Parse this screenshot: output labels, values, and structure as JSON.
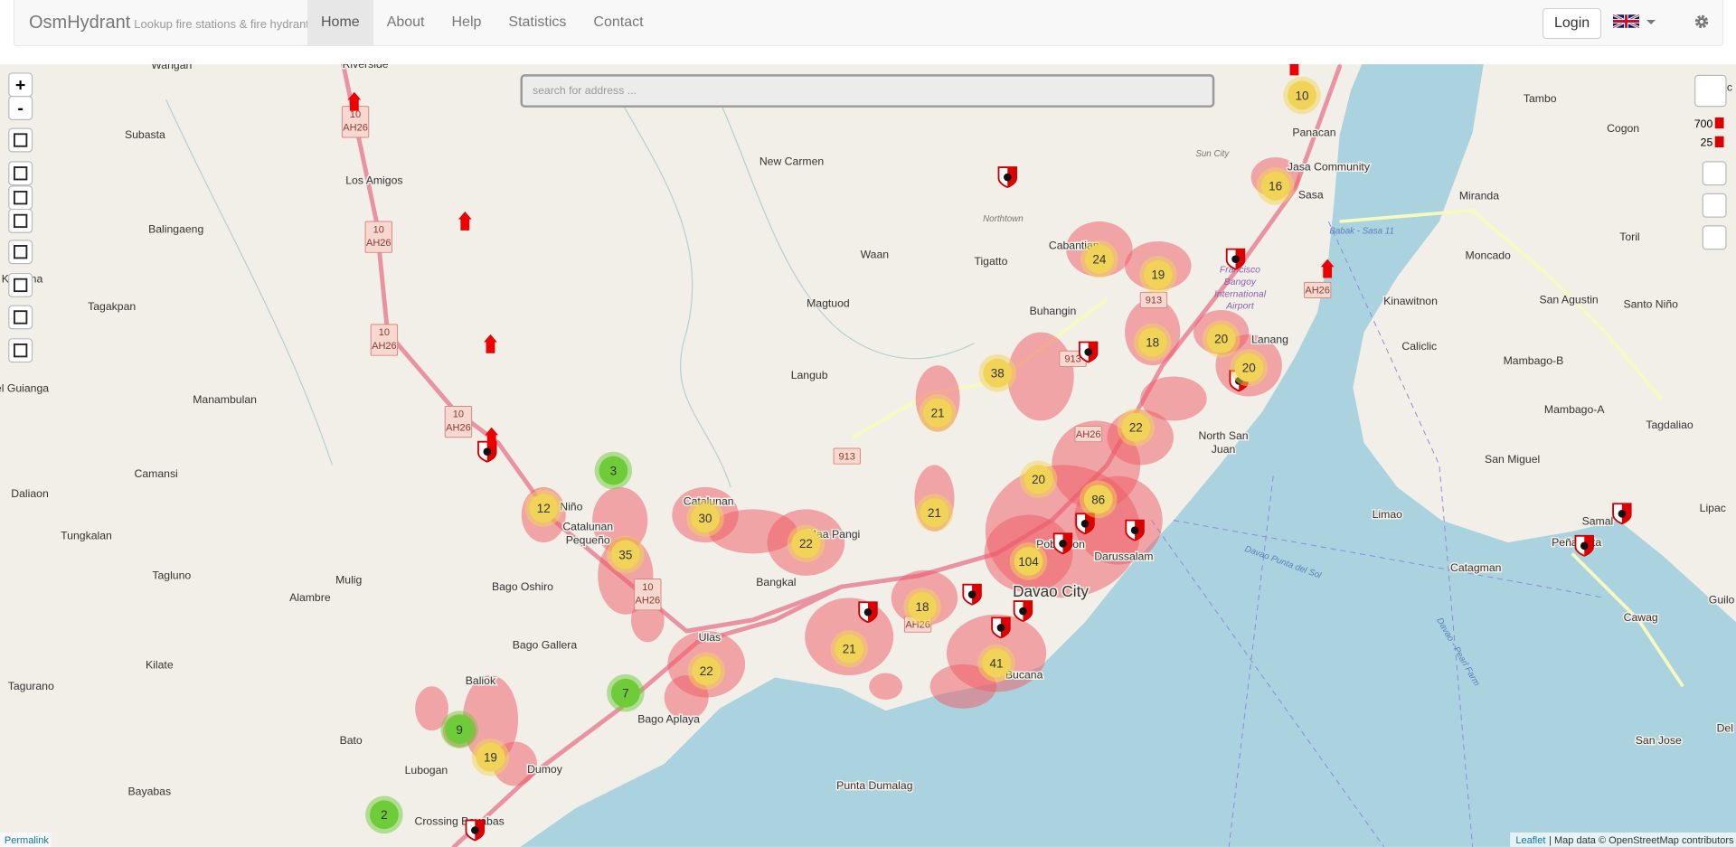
{
  "navbar": {
    "brand": "OsmHydrant",
    "tagline": "Lookup fire stations & fire hydrants",
    "items": [
      "Home",
      "About",
      "Help",
      "Statistics",
      "Contact"
    ],
    "login": "Login"
  },
  "map": {
    "search_placeholder": "search for address ...",
    "zoom_in": "+",
    "zoom_out": "-",
    "counters": [
      700,
      25
    ],
    "clusters": [
      {
        "count": 10,
        "color": "#f1d357"
      },
      {
        "count": 16,
        "color": "#f1d357"
      },
      {
        "count": 24,
        "color": "#f1d357"
      },
      {
        "count": 19,
        "color": "#f1d357"
      },
      {
        "count": 18,
        "color": "#f1d357"
      },
      {
        "count": 20,
        "color": "#f1d357"
      },
      {
        "count": 20,
        "color": "#f1d357"
      },
      {
        "count": 38,
        "color": "#f1d357"
      },
      {
        "count": 21,
        "color": "#f1d357"
      },
      {
        "count": 22,
        "color": "#f1d357"
      },
      {
        "count": 20,
        "color": "#f1d357"
      },
      {
        "count": 86,
        "color": "#f1d357"
      },
      {
        "count": 21,
        "color": "#f1d357"
      },
      {
        "count": 104,
        "color": "#f1d357"
      },
      {
        "count": 3,
        "color": "#6ecc39"
      },
      {
        "count": 12,
        "color": "#f1d357"
      },
      {
        "count": 30,
        "color": "#f1d357"
      },
      {
        "count": 22,
        "color": "#f1d357"
      },
      {
        "count": 35,
        "color": "#f1d357"
      },
      {
        "count": 18,
        "color": "#f1d357"
      },
      {
        "count": 21,
        "color": "#f1d357"
      },
      {
        "count": 22,
        "color": "#f1d357"
      },
      {
        "count": 41,
        "color": "#f1d357"
      },
      {
        "count": 7,
        "color": "#6ecc39"
      },
      {
        "count": 9,
        "color": "#6ecc39"
      },
      {
        "count": 19,
        "color": "#f1d357"
      },
      {
        "count": 2,
        "color": "#6ecc39"
      }
    ],
    "place_labels": [
      "Riverside",
      "Subasta",
      "Los Amigos",
      "New Carmen",
      "Balingaeng",
      "Tagakpan",
      "Waan",
      "Tigatto",
      "Magtuod",
      "Northtown",
      "Cabantian",
      "Buhangin",
      "Langub",
      "Manambulan",
      "Lanang",
      "Camansi",
      "Daliaon",
      "North San",
      "Juan",
      "Tungkalan",
      "Catalunan",
      "Pequeño",
      "Tagluno",
      "Mulig",
      "Alambre",
      "Bago Oshiro",
      "Bangkal",
      "Maa Pangi",
      "Poblacion",
      "Darussalam",
      "Davao City",
      "Bago Gallera",
      "Ulas",
      "Kilate",
      "Baliok",
      "Bago Aplaya",
      "Tagurano",
      "Bato",
      "Lubogan",
      "Dumoy",
      "Bayabas",
      "Punta Dumalag",
      "Crossing Bayabas",
      "Bucana",
      "Panacan",
      "Jasa Community",
      "Sasa",
      "Sun City",
      "Tambo",
      "Cogon",
      "Miranda",
      "Moncado",
      "Toril",
      "Kinawitnon",
      "San Agustin",
      "Santo Niño",
      "Caliclic",
      "Mambago-B",
      "Mambago-A",
      "Tagdaliao",
      "San Miguel",
      "Limao",
      "Lipac",
      "Samal",
      "Peñaplata",
      "Catagman",
      "Cawag",
      "Guilo",
      "San Jose",
      "Del",
      "Libuac",
      "Niño",
      "Catalunan",
      "Wangan",
      "Kamana",
      "el Guianga"
    ],
    "water_labels": [
      "Babak - Sasa 11",
      "Davao Punta del Sol",
      "Davao - Pearl Farm"
    ],
    "airport_label": [
      "Francisco",
      "Bangoy",
      "International",
      "Airport"
    ],
    "road_shields": [
      {
        "lines": [
          "10",
          "AH26"
        ]
      },
      {
        "lines": [
          "10",
          "AH26"
        ]
      },
      {
        "lines": [
          "10",
          "AH26"
        ]
      },
      {
        "lines": [
          "10",
          "AH26"
        ]
      },
      {
        "lines": [
          "10",
          "AH26"
        ]
      },
      {
        "lines": [
          "913"
        ]
      },
      {
        "lines": [
          "913"
        ]
      },
      {
        "lines": [
          "AH26"
        ]
      },
      {
        "lines": [
          "AH26"
        ]
      },
      {
        "lines": [
          "AH26"
        ]
      },
      {
        "lines": [
          "913"
        ]
      }
    ],
    "permalink": "Permalink",
    "attribution": {
      "link": "Leaflet",
      "text": "| Map data © OpenStreetMap contributors"
    }
  }
}
